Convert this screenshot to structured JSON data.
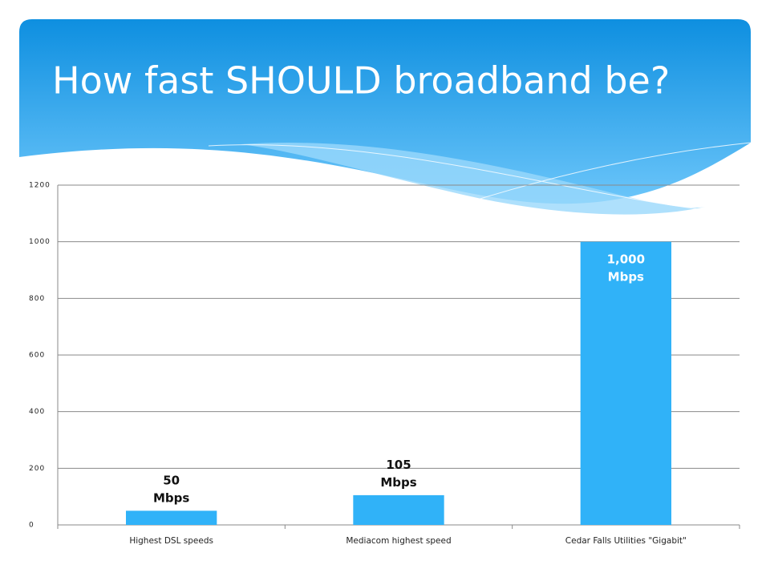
{
  "chart_data": {
    "type": "bar",
    "title": "How fast SHOULD broadband be?",
    "categories": [
      "Highest DSL speeds",
      "Mediacom highest speed",
      "Cedar Falls Utilities \"Gigabit\""
    ],
    "values": [
      50,
      105,
      1000
    ],
    "value_labels": [
      "50 Mbps",
      "105 Mbps",
      "1,000 Mbps"
    ],
    "color": "#30b2f8",
    "ylim": [
      0,
      1200
    ],
    "yticks": [
      0,
      200,
      400,
      600,
      800,
      1000,
      1200
    ],
    "grid": true
  }
}
